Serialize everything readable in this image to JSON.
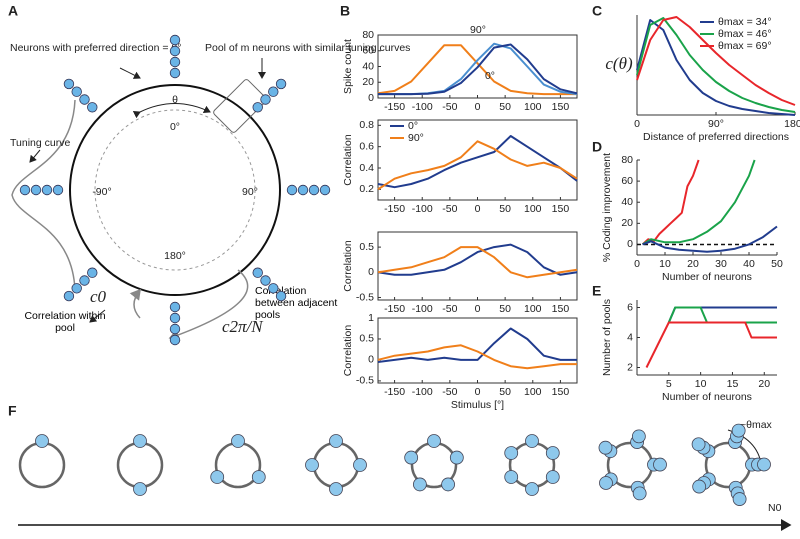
{
  "panel_labels": [
    "A",
    "B",
    "C",
    "D",
    "E",
    "F"
  ],
  "diagram_a": {
    "neurons_label": "Neurons with preferred direction = 0°",
    "pool_label": "Pool of m neurons with similar tuning curves",
    "theta": "θ",
    "angle_top": "0°",
    "angle_left": "-90°",
    "angle_right": "90°",
    "angle_bottom": "180°",
    "tuning_curve": "Tuning curve",
    "within_label": "Correlation within pool",
    "c_within": "c0",
    "between_label": "Correlation between adjacent pools",
    "c_between": "c2π/N"
  },
  "diagram_f": {
    "theta_max": "~θmax",
    "axis_label": "N0"
  },
  "chart_data": [
    {
      "type": "line",
      "ylabel": "Spike count",
      "x": [
        -180,
        -150,
        -120,
        -90,
        -60,
        -30,
        0,
        30,
        60,
        90,
        120,
        150,
        180
      ],
      "xlim": [
        -180,
        180
      ],
      "xticks": [
        -150,
        -100,
        -50,
        0,
        50,
        100,
        150
      ],
      "ylim": [
        0,
        80
      ],
      "yticks": [
        0,
        20,
        40,
        60,
        80
      ],
      "annotations": [
        "90°",
        "0°"
      ],
      "series": [
        {
          "color": "#f07f1a",
          "values": [
            6,
            9,
            21,
            44,
            67,
            67,
            44,
            21,
            9,
            6,
            5,
            5,
            5
          ]
        },
        {
          "color": "#4a8fd0",
          "values": [
            5,
            5,
            5,
            6,
            9,
            24,
            48,
            69,
            63,
            40,
            17,
            8,
            5
          ]
        },
        {
          "color": "#213c8e",
          "values": [
            5,
            5,
            5,
            5.5,
            8,
            19,
            39,
            64,
            68,
            49,
            24,
            11,
            6
          ]
        }
      ]
    },
    {
      "type": "line",
      "ylabel": "Correlation",
      "x": [
        -180,
        -150,
        -120,
        -90,
        -60,
        -30,
        0,
        30,
        60,
        90,
        120,
        150,
        180
      ],
      "xlim": [
        -180,
        180
      ],
      "xticks": [
        -150,
        -100,
        -50,
        0,
        50,
        100,
        150
      ],
      "ylim": [
        0.1,
        0.85
      ],
      "yticks": [
        0.2,
        0.4,
        0.6,
        0.8
      ],
      "legend": "upper left",
      "series": [
        {
          "name": "0°",
          "color": "#213c8e",
          "values": [
            0.25,
            0.22,
            0.25,
            0.3,
            0.38,
            0.45,
            0.5,
            0.55,
            0.7,
            0.6,
            0.5,
            0.4,
            0.28
          ]
        },
        {
          "name": "90°",
          "color": "#f07f1a",
          "values": [
            0.2,
            0.3,
            0.35,
            0.38,
            0.42,
            0.5,
            0.65,
            0.58,
            0.48,
            0.42,
            0.45,
            0.4,
            0.3
          ]
        }
      ]
    },
    {
      "type": "line",
      "ylabel": "Correlation",
      "x": [
        -180,
        -150,
        -120,
        -90,
        -60,
        -30,
        0,
        30,
        60,
        90,
        120,
        150,
        180
      ],
      "xlim": [
        -180,
        180
      ],
      "xticks": [
        -150,
        -100,
        -50,
        0,
        50,
        100,
        150
      ],
      "ylim": [
        -0.55,
        0.8
      ],
      "yticks": [
        -0.5,
        0,
        0.5
      ],
      "series": [
        {
          "color": "#213c8e",
          "values": [
            0,
            -0.05,
            -0.05,
            0,
            0.05,
            0.2,
            0.4,
            0.5,
            0.55,
            0.4,
            0.1,
            -0.05,
            0
          ]
        },
        {
          "color": "#f07f1a",
          "values": [
            0,
            0.05,
            0.1,
            0.2,
            0.3,
            0.5,
            0.5,
            0.3,
            0,
            -0.1,
            -0.05,
            0,
            0.05
          ]
        }
      ]
    },
    {
      "type": "line",
      "ylabel": "Correlation",
      "xlabel": "Stimulus [°]",
      "x": [
        -180,
        -150,
        -120,
        -90,
        -60,
        -30,
        0,
        30,
        60,
        90,
        120,
        150,
        180
      ],
      "xlim": [
        -180,
        180
      ],
      "xticks": [
        -150,
        -100,
        -50,
        0,
        50,
        100,
        150
      ],
      "ylim": [
        -0.55,
        1
      ],
      "yticks": [
        -0.5,
        0,
        0.5,
        1
      ],
      "series": [
        {
          "color": "#213c8e",
          "values": [
            -0.05,
            0,
            0.05,
            0,
            0.05,
            0,
            0,
            0.4,
            0.75,
            0.5,
            0.1,
            0,
            0
          ]
        },
        {
          "color": "#f07f1a",
          "values": [
            0,
            0.1,
            0.15,
            0.2,
            0.3,
            0.35,
            0.2,
            0,
            -0.15,
            -0.2,
            -0.15,
            -0.1,
            -0.1
          ]
        }
      ]
    },
    {
      "type": "line",
      "ylabel": "c(θ)",
      "xlabel": "Distance of preferred directions",
      "x": [
        0,
        15,
        30,
        45,
        60,
        75,
        90,
        105,
        120,
        135,
        150,
        165,
        180
      ],
      "xlim": [
        0,
        180
      ],
      "xticks": [
        0,
        {
          "value": 90,
          "label": "90°"
        },
        {
          "value": 180,
          "label": "180°"
        }
      ],
      "ylim": [
        0,
        1
      ],
      "yticks": [],
      "legend": "upper right",
      "series": [
        {
          "name": "θmax = 34°",
          "color": "#213c8e",
          "values": [
            0.45,
            0.95,
            0.85,
            0.55,
            0.35,
            0.22,
            0.14,
            0.09,
            0.06,
            0.04,
            0.02,
            0.01,
            0
          ]
        },
        {
          "name": "θmax = 46°",
          "color": "#1aa34a",
          "values": [
            0.4,
            0.9,
            0.97,
            0.8,
            0.6,
            0.45,
            0.33,
            0.24,
            0.17,
            0.12,
            0.08,
            0.05,
            0.03
          ]
        },
        {
          "name": "θmax = 69°",
          "color": "#e8262b",
          "values": [
            0.35,
            0.75,
            0.95,
            0.98,
            0.88,
            0.75,
            0.62,
            0.5,
            0.4,
            0.3,
            0.22,
            0.15,
            0.1
          ]
        }
      ]
    },
    {
      "type": "line",
      "ylabel": "% Coding improvement",
      "xlabel": "Number of neurons",
      "xlim": [
        0,
        50
      ],
      "xticks": [
        0,
        10,
        20,
        30,
        40,
        50
      ],
      "ylim": [
        -10,
        80
      ],
      "yticks": [
        0,
        20,
        40,
        60,
        80
      ],
      "reference_line": 0,
      "series": [
        {
          "color": "#e8262b",
          "x": [
            2,
            4,
            6,
            8,
            10,
            12,
            14,
            16,
            18,
            20,
            22
          ],
          "values": [
            0,
            5,
            3,
            10,
            15,
            20,
            25,
            30,
            55,
            65,
            80
          ]
        },
        {
          "color": "#1aa34a",
          "x": [
            2,
            5,
            10,
            15,
            20,
            25,
            30,
            35,
            40,
            42
          ],
          "values": [
            0,
            5,
            2,
            2,
            5,
            12,
            22,
            40,
            65,
            80
          ]
        },
        {
          "color": "#213c8e",
          "x": [
            2,
            5,
            10,
            15,
            20,
            25,
            30,
            35,
            40,
            45,
            50
          ],
          "values": [
            0,
            3,
            -3,
            -5,
            -6,
            -7,
            -6,
            -4,
            0,
            7,
            17
          ]
        }
      ]
    },
    {
      "type": "line",
      "ylabel": "Number of pools",
      "xlabel": "Number of neurons",
      "xlim": [
        0,
        22
      ],
      "xticks": [
        5,
        10,
        15,
        20
      ],
      "ylim": [
        1.5,
        6.5
      ],
      "yticks": [
        2,
        4,
        6
      ],
      "series": [
        {
          "color": "#213c8e",
          "x": [
            5,
            6,
            22
          ],
          "values": [
            5,
            6,
            6
          ]
        },
        {
          "color": "#1aa34a",
          "x": [
            5,
            6,
            10,
            11,
            22
          ],
          "values": [
            5,
            6,
            6,
            5,
            5
          ]
        },
        {
          "color": "#e8262b",
          "x": [
            1.5,
            5,
            17,
            18,
            22
          ],
          "values": [
            2,
            5,
            5,
            4,
            4
          ]
        }
      ]
    }
  ]
}
